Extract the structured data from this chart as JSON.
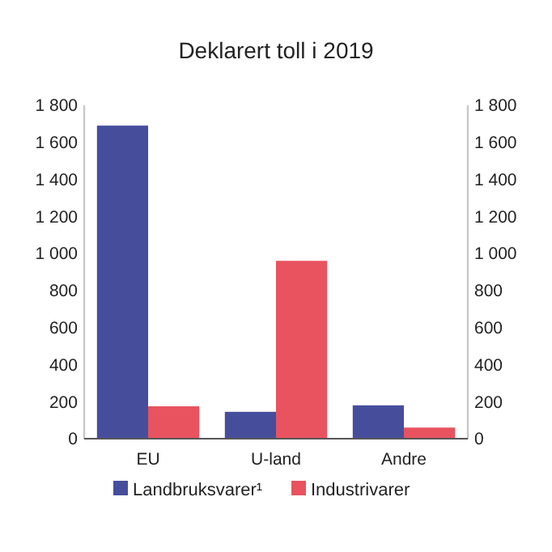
{
  "chart_data": {
    "type": "bar",
    "title": "Deklarert toll i 2019",
    "categories": [
      "EU",
      "U-land",
      "Andre"
    ],
    "series": [
      {
        "name": "Landbruksvarer¹",
        "color": "#464e9c",
        "values": [
          1690,
          145,
          180
        ]
      },
      {
        "name": "Industrivarer",
        "color": "#e8535f",
        "values": [
          175,
          960,
          60
        ]
      }
    ],
    "ylim": [
      0,
      1800
    ],
    "yticks": [
      0,
      200,
      400,
      600,
      800,
      {
        "value": 1000,
        "label": "1 000"
      },
      {
        "value": 1200,
        "label": "1 200"
      },
      {
        "value": 1400,
        "label": "1 400"
      },
      {
        "value": 1600,
        "label": "1 600"
      },
      {
        "value": 1800,
        "label": "1 800"
      }
    ],
    "y2lim": [
      0,
      1800
    ],
    "y2ticks": [
      0,
      200,
      400,
      600,
      800,
      {
        "value": 1000,
        "label": "1 000"
      },
      {
        "value": 1200,
        "label": "1 200"
      },
      {
        "value": 1400,
        "label": "1 400"
      },
      {
        "value": 1600,
        "label": "1 600"
      },
      {
        "value": 1800,
        "label": "1 800"
      }
    ],
    "grid": false,
    "legend": "bottom"
  }
}
